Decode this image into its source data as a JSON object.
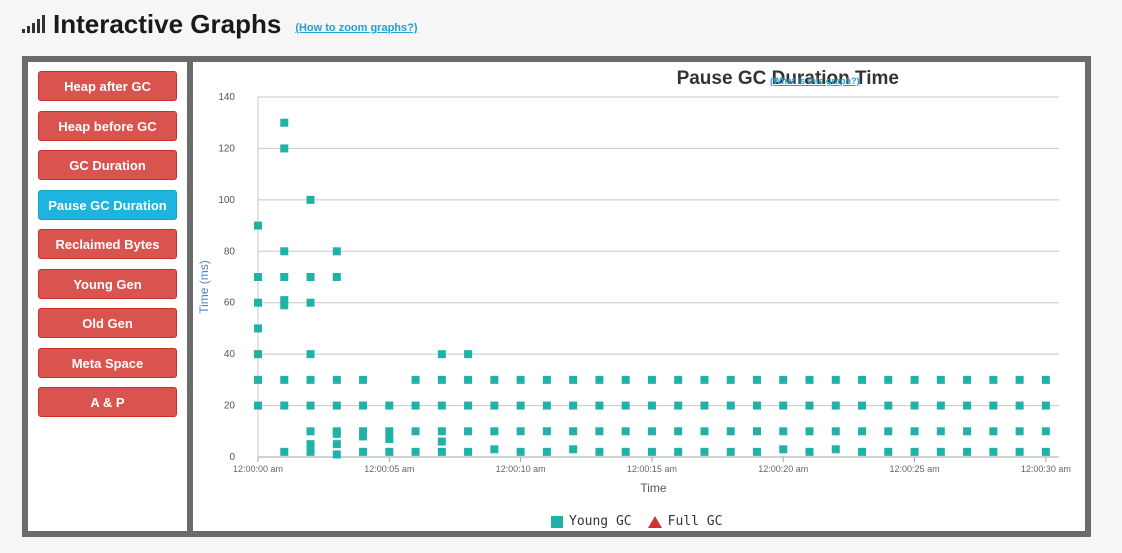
{
  "header": {
    "title": "Interactive Graphs",
    "zoom_link": "(How to zoom graphs?)"
  },
  "sidebar": {
    "items": [
      {
        "label": "Heap after GC",
        "active": false
      },
      {
        "label": "Heap before GC",
        "active": false
      },
      {
        "label": "GC Duration",
        "active": false
      },
      {
        "label": "Pause GC Duration",
        "active": true
      },
      {
        "label": "Reclaimed Bytes",
        "active": false
      },
      {
        "label": "Young Gen",
        "active": false
      },
      {
        "label": "Old Gen",
        "active": false
      },
      {
        "label": "Meta Space",
        "active": false
      },
      {
        "label": "A & P",
        "active": false
      }
    ]
  },
  "chart_link": "(What is this graph?)",
  "colors": {
    "young_gc": "#20b2a6",
    "full_gc": "#cc3333",
    "button": "#d9534f",
    "button_active": "#1db5df"
  },
  "chart_data": {
    "type": "scatter",
    "title": "Pause GC Duration Time",
    "xlabel": "Time",
    "ylabel": "Time (ms)",
    "ylim": [
      0,
      140
    ],
    "xlim_seconds": [
      0,
      30.5
    ],
    "y_ticks": [
      0,
      20,
      40,
      60,
      80,
      100,
      120,
      140
    ],
    "x_ticks": [
      {
        "t": 0,
        "label": "12:00:00 am"
      },
      {
        "t": 5,
        "label": "12:00:05 am"
      },
      {
        "t": 10,
        "label": "12:00:10 am"
      },
      {
        "t": 15,
        "label": "12:00:15 am"
      },
      {
        "t": 20,
        "label": "12:00:20 am"
      },
      {
        "t": 25,
        "label": "12:00:25 am"
      },
      {
        "t": 30,
        "label": "12:00:30 am"
      }
    ],
    "legend": [
      "Young GC",
      "Full GC"
    ],
    "grid": true,
    "series": [
      {
        "name": "Young GC",
        "marker": "square",
        "points": [
          [
            0,
            90
          ],
          [
            0,
            70
          ],
          [
            0,
            60
          ],
          [
            0,
            50
          ],
          [
            0,
            40
          ],
          [
            0,
            30
          ],
          [
            0,
            20
          ],
          [
            1,
            130
          ],
          [
            1,
            120
          ],
          [
            1,
            80
          ],
          [
            1,
            70
          ],
          [
            1,
            61
          ],
          [
            1,
            59
          ],
          [
            1,
            30
          ],
          [
            1,
            20
          ],
          [
            1,
            2
          ],
          [
            2,
            100
          ],
          [
            2,
            70
          ],
          [
            2,
            60
          ],
          [
            2,
            40
          ],
          [
            2,
            30
          ],
          [
            2,
            20
          ],
          [
            2,
            10
          ],
          [
            2,
            5
          ],
          [
            2,
            2
          ],
          [
            3,
            80
          ],
          [
            3,
            70
          ],
          [
            3,
            30
          ],
          [
            3,
            20
          ],
          [
            3,
            10
          ],
          [
            3,
            9
          ],
          [
            3,
            5
          ],
          [
            3,
            1
          ],
          [
            4,
            30
          ],
          [
            4,
            20
          ],
          [
            4,
            10
          ],
          [
            4,
            8
          ],
          [
            4,
            2
          ],
          [
            5,
            20
          ],
          [
            5,
            10
          ],
          [
            5,
            7
          ],
          [
            5,
            2
          ],
          [
            6,
            30
          ],
          [
            6,
            20
          ],
          [
            6,
            10
          ],
          [
            6,
            2
          ],
          [
            7,
            40
          ],
          [
            7,
            30
          ],
          [
            7,
            20
          ],
          [
            7,
            10
          ],
          [
            7,
            6
          ],
          [
            7,
            2
          ],
          [
            8,
            40
          ],
          [
            8,
            30
          ],
          [
            8,
            20
          ],
          [
            8,
            10
          ],
          [
            8,
            2
          ],
          [
            9,
            30
          ],
          [
            9,
            20
          ],
          [
            9,
            10
          ],
          [
            9,
            3
          ],
          [
            10,
            30
          ],
          [
            10,
            20
          ],
          [
            10,
            10
          ],
          [
            10,
            2
          ],
          [
            11,
            30
          ],
          [
            11,
            20
          ],
          [
            11,
            10
          ],
          [
            11,
            2
          ],
          [
            12,
            30
          ],
          [
            12,
            20
          ],
          [
            12,
            10
          ],
          [
            12,
            3
          ],
          [
            13,
            30
          ],
          [
            13,
            20
          ],
          [
            13,
            10
          ],
          [
            13,
            2
          ],
          [
            14,
            30
          ],
          [
            14,
            20
          ],
          [
            14,
            10
          ],
          [
            14,
            2
          ],
          [
            15,
            30
          ],
          [
            15,
            20
          ],
          [
            15,
            10
          ],
          [
            15,
            2
          ],
          [
            16,
            30
          ],
          [
            16,
            20
          ],
          [
            16,
            10
          ],
          [
            16,
            2
          ],
          [
            17,
            30
          ],
          [
            17,
            20
          ],
          [
            17,
            10
          ],
          [
            17,
            2
          ],
          [
            18,
            30
          ],
          [
            18,
            20
          ],
          [
            18,
            10
          ],
          [
            18,
            2
          ],
          [
            19,
            30
          ],
          [
            19,
            20
          ],
          [
            19,
            10
          ],
          [
            19,
            2
          ],
          [
            20,
            30
          ],
          [
            20,
            20
          ],
          [
            20,
            10
          ],
          [
            20,
            3
          ],
          [
            21,
            30
          ],
          [
            21,
            20
          ],
          [
            21,
            10
          ],
          [
            21,
            2
          ],
          [
            22,
            30
          ],
          [
            22,
            20
          ],
          [
            22,
            10
          ],
          [
            22,
            3
          ],
          [
            23,
            30
          ],
          [
            23,
            20
          ],
          [
            23,
            10
          ],
          [
            23,
            2
          ],
          [
            24,
            30
          ],
          [
            24,
            20
          ],
          [
            24,
            10
          ],
          [
            24,
            2
          ],
          [
            25,
            30
          ],
          [
            25,
            20
          ],
          [
            25,
            10
          ],
          [
            25,
            2
          ],
          [
            26,
            30
          ],
          [
            26,
            20
          ],
          [
            26,
            10
          ],
          [
            26,
            2
          ],
          [
            27,
            30
          ],
          [
            27,
            20
          ],
          [
            27,
            10
          ],
          [
            27,
            2
          ],
          [
            28,
            30
          ],
          [
            28,
            20
          ],
          [
            28,
            10
          ],
          [
            28,
            2
          ],
          [
            29,
            30
          ],
          [
            29,
            20
          ],
          [
            29,
            10
          ],
          [
            29,
            2
          ],
          [
            30,
            30
          ],
          [
            30,
            20
          ],
          [
            30,
            10
          ],
          [
            30,
            2
          ]
        ]
      },
      {
        "name": "Full GC",
        "marker": "triangle",
        "points": []
      }
    ]
  }
}
